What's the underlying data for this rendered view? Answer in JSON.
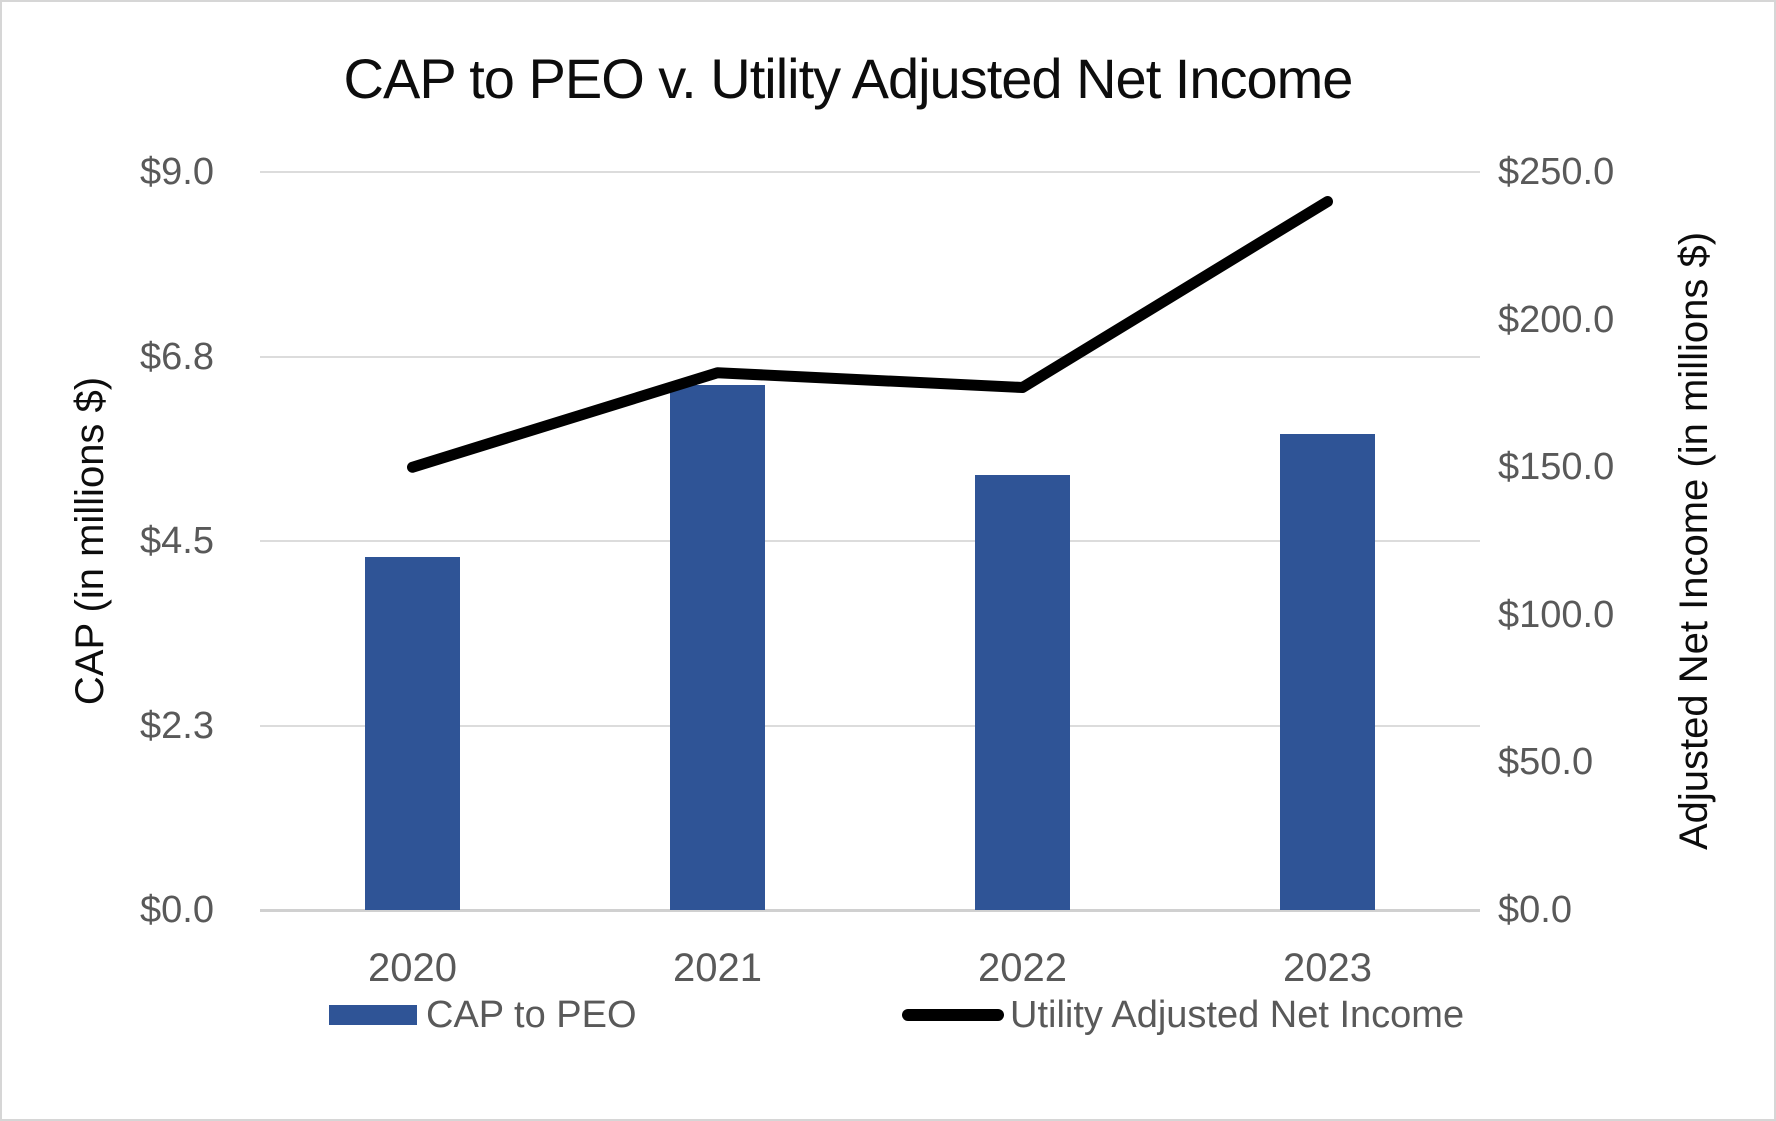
{
  "chart_data": {
    "type": "bar+line combo",
    "title": "CAP to PEO v. Utility Adjusted Net Income",
    "categories": [
      "2020",
      "2021",
      "2022",
      "2023"
    ],
    "series": [
      {
        "name": "CAP to PEO",
        "type": "bar",
        "axis": "left",
        "values": [
          4.3,
          6.4,
          5.3,
          5.8
        ],
        "color": "#2F5496"
      },
      {
        "name": "Utility Adjusted Net Income",
        "type": "line",
        "axis": "right",
        "values": [
          150,
          182,
          177,
          240
        ],
        "color": "#000000"
      }
    ],
    "left_axis": {
      "label": "CAP (in millions $)",
      "range": [
        0,
        9
      ],
      "tick_labels": [
        "$0.0",
        "$2.3",
        "$4.5",
        "$6.8",
        "$9.0"
      ],
      "tick_values": [
        0,
        2.25,
        4.5,
        6.75,
        9
      ]
    },
    "right_axis": {
      "label": "Adjusted Net Income (in millions $)",
      "range": [
        0,
        250
      ],
      "tick_labels": [
        "$0.0",
        "$50.0",
        "$100.0",
        "$150.0",
        "$200.0",
        "$250.0"
      ],
      "tick_values": [
        0,
        50,
        100,
        150,
        200,
        250
      ]
    },
    "legend": {
      "position": "bottom",
      "entries": [
        "CAP to PEO",
        "Utility Adjusted Net Income"
      ]
    },
    "grid": "horizontal gridlines at left-axis ticks",
    "colors": {
      "bar": "#2F5496",
      "line": "#000000",
      "tick_text": "#595959",
      "axis_title_text": "#0d0d0d",
      "gridline": "#DCDCDC",
      "background": "#FFFFFF",
      "frame_border": "#D6D6D6"
    }
  }
}
